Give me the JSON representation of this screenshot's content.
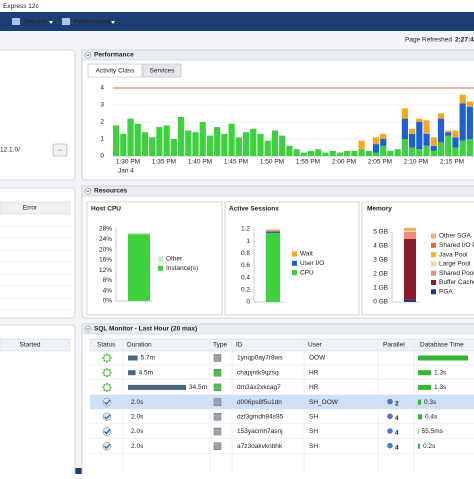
{
  "header": {
    "product": "Express 12c",
    "menus": [
      "Security",
      "Performance"
    ],
    "refreshed_label": "Page Refreshed",
    "refreshed_time": "2:27:4"
  },
  "left": {
    "version": "12.1.0/",
    "button": "...",
    "col_error": "Error",
    "col_started": "Started"
  },
  "performance": {
    "title": "Performance",
    "tabs": [
      "Activity Class",
      "Services"
    ]
  },
  "resources": {
    "title": "Resources",
    "panels": [
      "Host CPU",
      "Active Sessions",
      "Memory"
    ]
  },
  "chart_data": [
    {
      "type": "bar",
      "stacked": true,
      "grid": true,
      "ylim": [
        0,
        4.3
      ],
      "yticks": [
        0,
        1,
        2,
        3,
        4
      ],
      "x_labels": [
        "1:30 PM",
        "1:35 PM",
        "1:40 PM",
        "1:45 PM",
        "1:50 PM",
        "1:55 PM",
        "2:00 PM",
        "2:05 PM",
        "2:10 PM",
        "2:15 PM"
      ],
      "x_sublabel": "Jan 4",
      "cpu_cores": 4,
      "cpu_cores_color": "#e8322c",
      "series": [
        {
          "color": "#3dd13d",
          "values": [
            1.8,
            1.3,
            2.2,
            1.9,
            1.4,
            1.1,
            1.7,
            1.8,
            1.0,
            2.3,
            1.5,
            1.4,
            2.0,
            1.2,
            1.7,
            1.3,
            1.9,
            1.1,
            1.4,
            1.6,
            1.3,
            0.9,
            1.5,
            1.2,
            0.6,
            0.4,
            0.2,
            0.3,
            0.4,
            0.2,
            0.3,
            0.2,
            0.3,
            0.3,
            0.4,
            0.3,
            0.2,
            0.6,
            0.3,
            0.4,
            1.0,
            0.5,
            0.4,
            0.6,
            0.3,
            0.8,
            1.2,
            0.5,
            0.9,
            1.0
          ]
        },
        {
          "color": "#1f5fd6",
          "values": [
            0,
            0,
            0,
            0,
            0,
            0,
            0,
            0,
            0,
            0,
            0,
            0,
            0,
            0,
            0,
            0,
            0,
            0,
            0,
            0,
            0,
            0,
            0,
            0,
            0,
            0,
            0,
            0,
            0,
            0,
            0,
            0,
            0,
            0,
            0,
            0,
            0.5,
            0.4,
            0,
            0,
            1.2,
            0.8,
            1.6,
            0.7,
            0.3,
            1.4,
            0.2,
            0.6,
            2.2,
            1.9
          ]
        },
        {
          "color": "#f5a623",
          "values": [
            0,
            0,
            0,
            0,
            0,
            0,
            0,
            0,
            0,
            0,
            0,
            0,
            0,
            0,
            0,
            0,
            0,
            0,
            0,
            0,
            0,
            0,
            0,
            0,
            0,
            0,
            0,
            0,
            0,
            0,
            0,
            0,
            0,
            0,
            0.5,
            0,
            0.4,
            0.3,
            0,
            0,
            0.6,
            0.3,
            0.2,
            0.8,
            0.5,
            0.3,
            0.1,
            0.4,
            0.5,
            0.3
          ]
        }
      ]
    },
    {
      "type": "bar",
      "stacked": true,
      "ylim": [
        0,
        28
      ],
      "yticks": [
        {
          "value": 0,
          "label": "0%"
        },
        {
          "value": 4,
          "label": "4%"
        },
        {
          "value": 8,
          "label": "8%"
        },
        {
          "value": 12,
          "label": "12%"
        },
        {
          "value": 16,
          "label": "16%"
        },
        {
          "value": 20,
          "label": "20%"
        },
        {
          "value": 24,
          "label": "24%"
        },
        {
          "value": 28,
          "label": "28%"
        }
      ],
      "series": [
        {
          "name": "Instance(s)",
          "color": "#3dd13d",
          "values": [
            26
          ]
        },
        {
          "name": "Other",
          "color": "#b8f0b8",
          "values": [
            0.4
          ]
        }
      ]
    },
    {
      "type": "bar",
      "stacked": true,
      "ylim": [
        0,
        1.2
      ],
      "yticks": [
        0,
        0.2,
        0.4,
        0.6,
        0.8,
        1,
        1.2
      ],
      "series": [
        {
          "name": "CPU",
          "color": "#3dd13d",
          "values": [
            1.13
          ]
        },
        {
          "name": "User I/O",
          "color": "#1f5fd6",
          "values": [
            0.03
          ]
        },
        {
          "name": "Wait",
          "color": "#f5a623",
          "values": [
            0.03
          ]
        }
      ]
    },
    {
      "type": "bar",
      "stacked": true,
      "ylim": [
        0,
        5
      ],
      "yticks": [
        {
          "value": 0,
          "label": "0 GB"
        },
        {
          "value": 1,
          "label": "1 GB"
        },
        {
          "value": 2,
          "label": "2 GB"
        },
        {
          "value": 3,
          "label": "3 GB"
        },
        {
          "value": 4,
          "label": "4 GB"
        },
        {
          "value": 5,
          "label": "5 GB"
        }
      ],
      "series": [
        {
          "name": "PGA",
          "color": "#1f3a80",
          "values": [
            0.15
          ]
        },
        {
          "name": "Buffer Cache",
          "color": "#8b1c2b",
          "values": [
            4.35
          ]
        },
        {
          "name": "Shared Pool",
          "color": "#f08a7a",
          "values": [
            0.5
          ]
        },
        {
          "name": "Large Pool",
          "color": "#f0d9a0",
          "values": [
            0.1
          ]
        },
        {
          "name": "Java Pool",
          "color": "#f5c000",
          "values": [
            0.05
          ]
        },
        {
          "name": "Shared I/O Pool",
          "color": "#e07030",
          "values": [
            0.05
          ]
        },
        {
          "name": "Other SGA",
          "color": "#f4b080",
          "values": [
            0.1
          ]
        }
      ]
    }
  ],
  "sql_monitor": {
    "title": "SQL Monitor - Last Hour (20 max)",
    "columns": [
      "Status",
      "Duration",
      "Type",
      "ID",
      "User",
      "Parallel",
      "Database Time"
    ],
    "rows": [
      {
        "duration": 342,
        "duration_label": "5.7m",
        "id": "1ynqp0ay7r8ws",
        "user": "OOW",
        "parallel": null,
        "db_time": 5,
        "db_time_label": null
      },
      {
        "duration": 270,
        "duration_label": "4.5m",
        "id": "chapjntk9qzsq",
        "user": "HR",
        "parallel": null,
        "db_time": 1.3,
        "db_time_label": "1.3s"
      },
      {
        "duration": 2070,
        "duration_label": "34.5m",
        "id": "dm3ax2xkcag7",
        "user": "HR",
        "parallel": null,
        "db_time": 1.3,
        "db_time_label": "1.3s"
      },
      {
        "duration": 2,
        "duration_label": "2.0s",
        "id": "d006ps8f5u1dn",
        "user": "SH_OOW",
        "parallel": 2,
        "db_time": 0.3,
        "db_time_label": "0.3s"
      },
      {
        "duration": 2,
        "duration_label": "2.0s",
        "id": "dzf3gmdh84s95",
        "user": "SH",
        "parallel": 4,
        "db_time": 0.4,
        "db_time_label": "0.4s"
      },
      {
        "duration": 2,
        "duration_label": "2.0s",
        "id": "153yacmh7asnj",
        "user": "SH",
        "parallel": 4,
        "db_time": 0.0555,
        "db_time_label": "55.5ms"
      },
      {
        "duration": 2,
        "duration_label": "2.0s",
        "id": "a7z3oakvknbhk",
        "user": "SH",
        "parallel": 4,
        "db_time": 0.2,
        "db_time_label": "0.2s"
      }
    ]
  }
}
